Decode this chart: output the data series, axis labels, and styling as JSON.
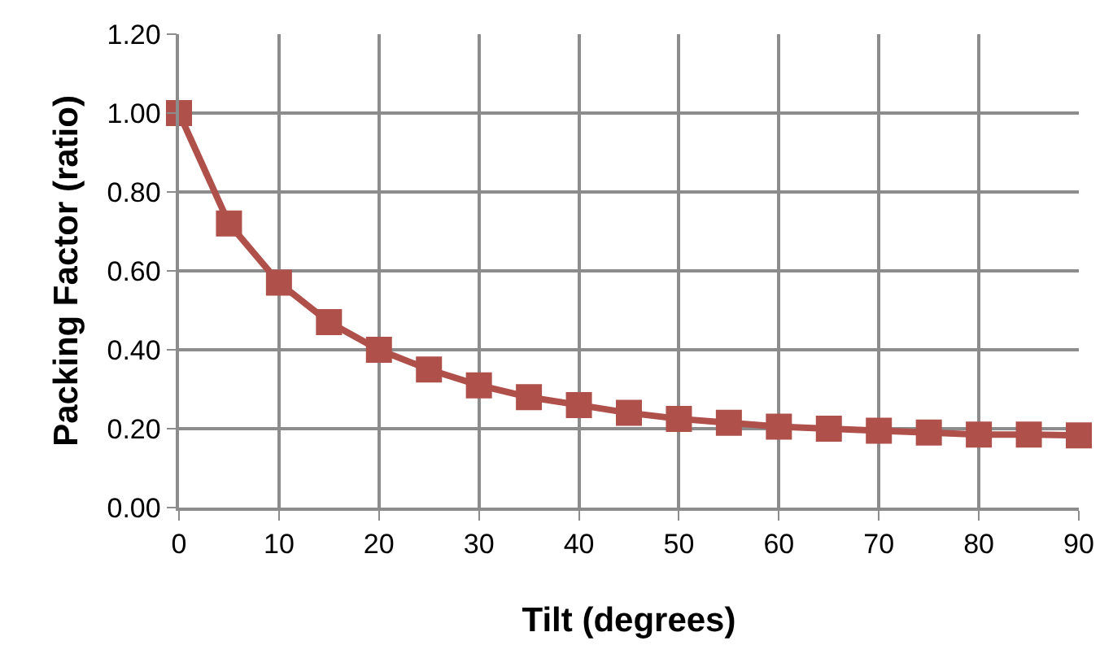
{
  "chart_data": {
    "type": "line",
    "xlabel": "Tilt (degrees)",
    "ylabel": "Packing Factor (ratio)",
    "x": [
      0,
      5,
      10,
      15,
      20,
      25,
      30,
      35,
      40,
      45,
      50,
      55,
      60,
      65,
      70,
      75,
      80,
      85,
      90
    ],
    "series": [
      {
        "color": "#b0504b",
        "values": [
          1.0,
          0.72,
          0.57,
          0.47,
          0.4,
          0.35,
          0.31,
          0.28,
          0.26,
          0.24,
          0.225,
          0.215,
          0.205,
          0.2,
          0.195,
          0.19,
          0.185,
          0.185,
          0.183
        ]
      }
    ],
    "xlim": [
      0,
      90
    ],
    "xticks": [
      0,
      10,
      20,
      30,
      40,
      50,
      60,
      70,
      80,
      90
    ],
    "ylim": [
      0,
      1.2
    ],
    "yticks": [
      {
        "value": 0,
        "label": "0.00"
      },
      {
        "value": 0.2,
        "label": "0.20"
      },
      {
        "value": 0.4,
        "label": "0.40"
      },
      {
        "value": 0.6,
        "label": "0.60"
      },
      {
        "value": 0.8,
        "label": "0.80"
      },
      {
        "value": 1.0,
        "label": "1.00"
      },
      {
        "value": 1.2,
        "label": "1.20"
      }
    ],
    "grid": true,
    "marker": "square",
    "line_style": "solid"
  }
}
